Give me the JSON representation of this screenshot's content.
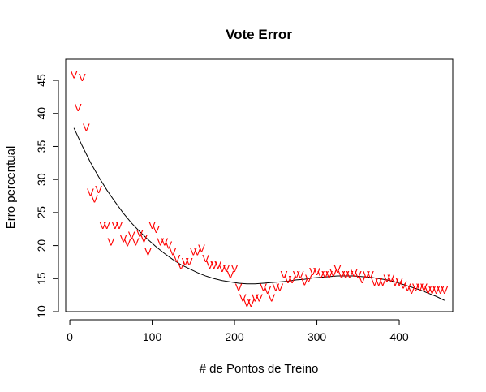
{
  "chart_data": {
    "type": "scatter",
    "title": "Vote Error",
    "xlabel": "# de Pontos de Treino",
    "ylabel": "Erro percentual",
    "xlim": [
      -5,
      465
    ],
    "ylim": [
      10,
      48.2
    ],
    "x_ticks": [
      "0",
      "100",
      "200",
      "300",
      "400"
    ],
    "y_ticks": [
      "10",
      "15",
      "20",
      "25",
      "30",
      "35",
      "40",
      "45"
    ],
    "x_tick_values": [
      0,
      100,
      200,
      300,
      400
    ],
    "y_tick_values": [
      10,
      15,
      20,
      25,
      30,
      35,
      40,
      45
    ],
    "point_marker": "V",
    "point_color": "#ff0000",
    "series": [
      {
        "x": [
          5,
          10,
          15,
          20,
          25,
          30,
          35,
          40,
          45,
          50,
          55,
          60,
          65,
          70,
          75,
          80,
          85,
          90,
          95,
          100,
          105,
          110,
          115,
          120,
          125,
          130,
          135,
          140,
          145,
          150,
          155,
          160,
          165,
          170,
          175,
          180,
          185,
          190,
          195,
          200,
          205,
          210,
          215,
          220,
          225,
          230,
          235,
          240,
          245,
          250,
          255,
          260,
          265,
          270,
          275,
          280,
          285,
          290,
          295,
          300,
          305,
          310,
          315,
          320,
          325,
          330,
          335,
          340,
          345,
          350,
          355,
          360,
          365,
          370,
          375,
          380,
          385,
          390,
          395,
          400,
          405,
          410,
          415,
          420,
          425,
          430,
          435,
          440,
          445,
          450,
          455
        ],
        "y": [
          45.8,
          40.8,
          45.4,
          37.8,
          28,
          27,
          28.4,
          23,
          23,
          20.5,
          23,
          23,
          21,
          20.4,
          21.5,
          20.5,
          21.8,
          21,
          19,
          23,
          22.4,
          20.5,
          20.5,
          20,
          19,
          18,
          16.9,
          17.5,
          17.5,
          19,
          19,
          19.5,
          18,
          17,
          17,
          17,
          16.5,
          16.5,
          15.5,
          16.5,
          13.6,
          12,
          11.2,
          11.2,
          12,
          12,
          13.6,
          13.2,
          12,
          13.6,
          13.6,
          15.5,
          14.8,
          14.8,
          15.5,
          15.5,
          14.5,
          15,
          16,
          16,
          15.5,
          15.5,
          15.5,
          15.8,
          16.4,
          15.5,
          15.5,
          15.5,
          15.8,
          15.5,
          14.8,
          15.5,
          15.5,
          14.4,
          14.4,
          14.4,
          15,
          15,
          14.4,
          14.4,
          14,
          13.6,
          13.2,
          13.6,
          13.6,
          13.6,
          13.2,
          13.2,
          13.2,
          13.2,
          13.2
        ]
      },
      {
        "x": [
          5,
          15,
          25,
          35,
          45,
          55,
          65,
          75,
          85,
          95,
          105,
          115,
          125,
          135,
          145,
          155,
          165,
          175,
          185,
          195,
          205,
          215,
          225,
          235,
          245,
          255,
          265,
          275,
          285,
          295,
          305,
          315,
          325,
          335,
          345,
          355,
          365,
          375,
          385,
          395,
          405,
          415,
          425,
          435,
          445,
          455
        ],
        "y": [
          37.8,
          35.1,
          32.6,
          30.4,
          28.4,
          26.6,
          24.9,
          23.4,
          22.1,
          20.9,
          19.8,
          18.8,
          17.9,
          17.1,
          16.5,
          15.9,
          15.4,
          15,
          14.7,
          14.5,
          14.3,
          14.2,
          14.2,
          14.3,
          14.4,
          14.5,
          14.6,
          14.8,
          14.9,
          15.1,
          15.2,
          15.3,
          15.4,
          15.4,
          15.4,
          15.3,
          15.2,
          15,
          14.8,
          14.5,
          14.1,
          13.7,
          13.3,
          12.8,
          12.3,
          11.7
        ]
      }
    ]
  }
}
